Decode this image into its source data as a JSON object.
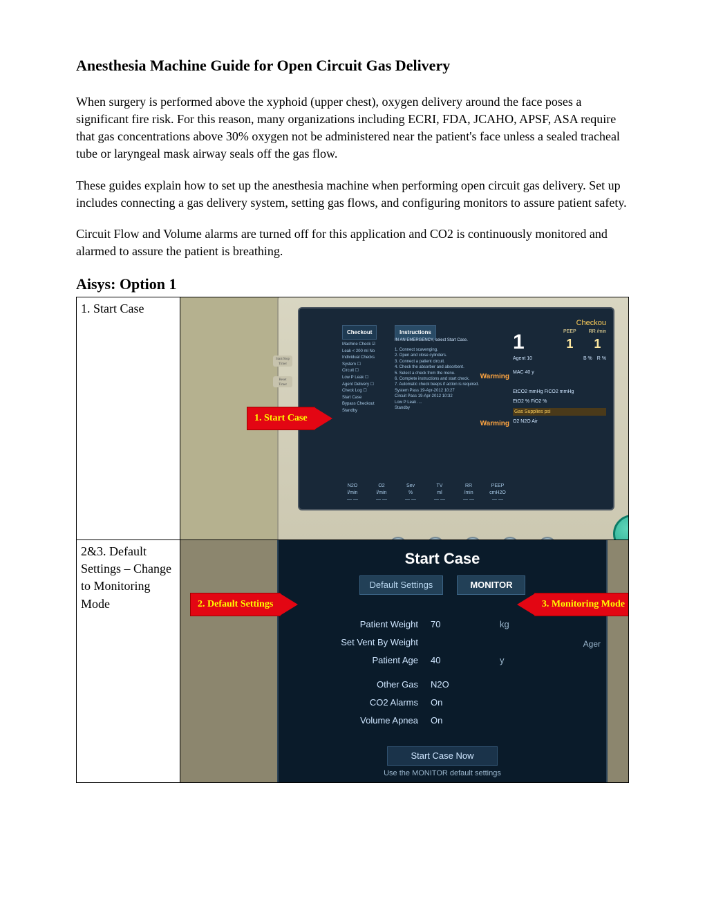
{
  "title": "Anesthesia Machine Guide for Open Circuit Gas Delivery",
  "para1": "When surgery is performed above the xyphoid (upper chest), oxygen delivery around the face poses a significant fire risk. For this reason, many organizations including ECRI, FDA, JCAHO, APSF, ASA require that gas concentrations above 30% oxygen not be administered near the patient's face unless a sealed tracheal tube or laryngeal mask airway seals off the gas flow.",
  "para2": "These guides explain how to set up the anesthesia machine when performing open circuit gas delivery.  Set up includes connecting a gas delivery system, setting gas flows, and configuring monitors to assure patient safety.",
  "para3": "Circuit Flow and Volume alarms are turned off for this application and CO2 is continuously monitored and alarmed to assure the patient is breathing.",
  "section_heading": "Aisys: Option 1",
  "row1": {
    "label": "1. Start Case",
    "callout": "1. Start Case",
    "screen": {
      "checkout": "Checkout",
      "instructions": "Instructions",
      "emergency": "IN AN EMERGENCY, select Start Case.",
      "col1_lines": [
        "Machine Check  ☑",
        "Leak < 200 ml   No",
        "",
        "Individual Checks",
        "System         ☐",
        "Circuit        ☐",
        "",
        "Low P Leak     ☐",
        "Agent Delivery ☐",
        "Check Log      ☐",
        "",
        "Start Case",
        "",
        "Bypass Checkout",
        "",
        "Standby"
      ],
      "col2_lines": [
        "1. Connect scavenging.",
        "2. Open and close cylinders.",
        "3. Connect a patient circuit.",
        "4. Check the absorber and absorbent.",
        "5. Select a check from the menu.",
        "6. Complete instructions and start check.",
        "7. Automatic check beeps if action is required.",
        "",
        "System          Pass 19-Apr-2012 10:27",
        "Circuit         Pass 19-Apr-2012 10:32",
        "",
        "Low P Leak      ....",
        "",
        "",
        "Standby"
      ],
      "right_checkout": "Checkou",
      "big1": "1",
      "peep": "PEEP",
      "rr": "RR /min",
      "peep_val": "1",
      "rr_val": "1",
      "warn1": "Warming",
      "warn2": "Warming",
      "mac": "MAC 40 y",
      "co2_lbl": "EtCO2  mmHg    FiCO2  mmHg",
      "eto2": "EtO2 %          FiO2 %",
      "agent": "Agent 10",
      "bottom": [
        "N2O  l/min",
        "O2  l/min",
        "Sev  %",
        "TV  ml",
        "RR  /min",
        "PEEP  cmH2O"
      ],
      "gas_supplies": "Gas Supplies         psi",
      "gas_vals": "O2    N2O    Air"
    }
  },
  "row2": {
    "label": "2&3. Default Settings – Change to Monitoring Mode",
    "callout_left": "2. Default Settings",
    "callout_right": "3. Monitoring Mode",
    "screen": {
      "title": "Start Case",
      "default_settings": "Default Settings",
      "monitor": "MONITOR",
      "rows": [
        {
          "lbl": "Patient Weight",
          "val": "70",
          "unit": "kg"
        },
        {
          "lbl": "Set Vent By Weight",
          "val": "",
          "unit": ""
        },
        {
          "lbl": "Patient Age",
          "val": "40",
          "unit": "y"
        },
        {
          "lbl": "",
          "val": "",
          "unit": ""
        },
        {
          "lbl": "Other Gas",
          "val": "N2O",
          "unit": ""
        },
        {
          "lbl": "CO2 Alarms",
          "val": "On",
          "unit": ""
        },
        {
          "lbl": "Volume Apnea",
          "val": "On",
          "unit": ""
        }
      ],
      "start_now": "Start Case Now",
      "hint": "Use the MONITOR default settings",
      "ager": "Ager"
    }
  },
  "colors": {
    "callout_bg": "#e30613",
    "callout_text": "#ffff00",
    "screen_bg": "#182838",
    "screen2_bg": "#0a1b2a"
  }
}
